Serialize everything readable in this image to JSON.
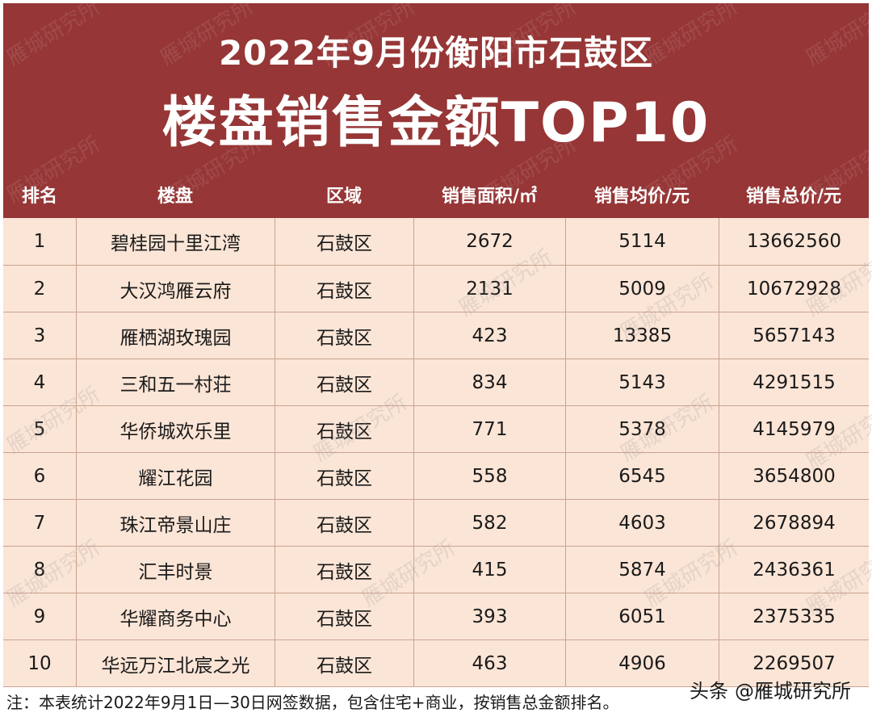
{
  "title": {
    "line1": "2022年9月份衡阳市石鼓区",
    "line2": "楼盘销售金额TOP10"
  },
  "columns": [
    "排名",
    "楼盘",
    "区域",
    "销售面积/㎡",
    "销售均价/元",
    "销售总价/元"
  ],
  "rows": [
    [
      "1",
      "碧桂园十里江湾",
      "石鼓区",
      "2672",
      "5114",
      "13662560"
    ],
    [
      "2",
      "大汉鸿雁云府",
      "石鼓区",
      "2131",
      "5009",
      "10672928"
    ],
    [
      "3",
      "雁栖湖玫瑰园",
      "石鼓区",
      "423",
      "13385",
      "5657143"
    ],
    [
      "4",
      "三和五一村荘",
      "石鼓区",
      "834",
      "5143",
      "4291515"
    ],
    [
      "5",
      "华侨城欢乐里",
      "石鼓区",
      "771",
      "5378",
      "4145979"
    ],
    [
      "6",
      "耀江花园",
      "石鼓区",
      "558",
      "6545",
      "3654800"
    ],
    [
      "7",
      "珠江帝景山庄",
      "石鼓区",
      "582",
      "4603",
      "2678894"
    ],
    [
      "8",
      "汇丰时景",
      "石鼓区",
      "415",
      "5874",
      "2436361"
    ],
    [
      "9",
      "华耀商务中心",
      "石鼓区",
      "393",
      "6051",
      "2375335"
    ],
    [
      "10",
      "华远万江北宸之光",
      "石鼓区",
      "463",
      "4906",
      "2269507"
    ]
  ],
  "footnote": "注：本表统计2022年9月1日—30日网签数据，包含住宅+商业，按销售总金额排名。",
  "brand": {
    "platform": "头条",
    "handle": "@雁城研究所"
  },
  "watermark": "雁城研究所",
  "colors": {
    "header_bg": "#963636",
    "row_bg": "#fbe5d6",
    "grid_line": "#c9a38f"
  }
}
